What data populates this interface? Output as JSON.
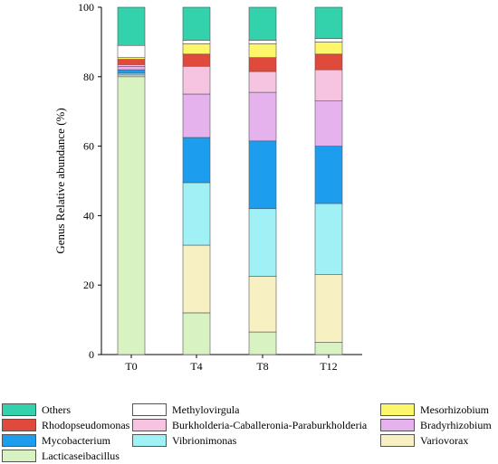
{
  "chart_data": {
    "type": "bar",
    "stacked": true,
    "xlabel": "",
    "ylabel": "Genus Relative abundance (%)",
    "ylim": [
      0,
      100
    ],
    "yticks": [
      0,
      20,
      40,
      60,
      80,
      100
    ],
    "categories": [
      "T0",
      "T4",
      "T8",
      "T12"
    ],
    "grid": false,
    "legend_position": "bottom",
    "series": [
      {
        "name": "Lacticaseibacillus",
        "color": "#d8f2c2",
        "values": [
          80.0,
          12.0,
          6.5,
          3.5
        ]
      },
      {
        "name": "Variovorax",
        "color": "#f7f0c2",
        "values": [
          0.5,
          19.5,
          16.0,
          19.5
        ]
      },
      {
        "name": "Vibrionimonas",
        "color": "#9ff1f5",
        "values": [
          0.5,
          18.0,
          19.5,
          20.5
        ]
      },
      {
        "name": "Mycobacterium",
        "color": "#1d9ded",
        "values": [
          1.0,
          13.0,
          19.5,
          16.5
        ]
      },
      {
        "name": "Bradyrhizobium",
        "color": "#e6b2ee",
        "values": [
          1.0,
          12.5,
          14.0,
          13.0
        ]
      },
      {
        "name": "Burkholderia-Caballeronia-Paraburkholderia",
        "color": "#f6c4e0",
        "values": [
          0.5,
          8.0,
          6.0,
          9.0
        ]
      },
      {
        "name": "Rhodopseudomonas",
        "color": "#e04a3c",
        "values": [
          1.5,
          3.5,
          4.0,
          4.5
        ]
      },
      {
        "name": "Mesorhizobium",
        "color": "#fbf66a",
        "values": [
          0.5,
          3.0,
          4.0,
          3.5
        ]
      },
      {
        "name": "Methylovirgula",
        "color": "#ffffff",
        "values": [
          3.5,
          1.0,
          1.0,
          1.0
        ]
      },
      {
        "name": "Others",
        "color": "#33d2ac",
        "values": [
          11.0,
          9.5,
          9.5,
          9.0
        ]
      }
    ]
  },
  "legend": {
    "items": [
      {
        "label": "Others",
        "color": "#33d2ac"
      },
      {
        "label": "Methylovirgula",
        "color": "#ffffff"
      },
      {
        "label": "Mesorhizobium",
        "color": "#fbf66a"
      },
      {
        "label": "Rhodopseudomonas",
        "color": "#e04a3c"
      },
      {
        "label": "Burkholderia-Caballeronia-Paraburkholderia",
        "color": "#f6c4e0"
      },
      {
        "label": "Bradyrhizobium",
        "color": "#e6b2ee"
      },
      {
        "label": "Mycobacterium",
        "color": "#1d9ded"
      },
      {
        "label": "Vibrionimonas",
        "color": "#9ff1f5"
      },
      {
        "label": "Variovorax",
        "color": "#f7f0c2"
      },
      {
        "label": "Lacticaseibacillus",
        "color": "#d8f2c2"
      }
    ]
  }
}
